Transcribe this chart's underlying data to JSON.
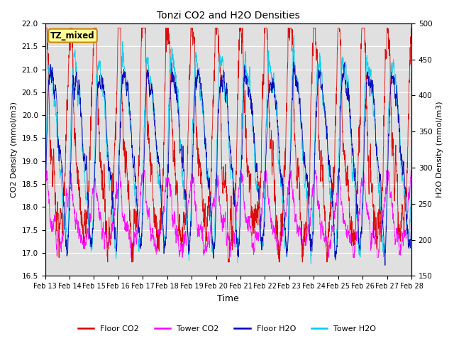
{
  "title": "Tonzi CO2 and H2O Densities",
  "xlabel": "Time",
  "ylabel_left": "CO2 Density (mmol/m3)",
  "ylabel_right": "H2O Density (mmol/m3)",
  "ylim_left": [
    16.5,
    22.0
  ],
  "ylim_right": [
    150,
    500
  ],
  "yticks_left": [
    16.5,
    17.0,
    17.5,
    18.0,
    18.5,
    19.0,
    19.5,
    20.0,
    20.5,
    21.0,
    21.5,
    22.0
  ],
  "yticks_right": [
    150,
    200,
    250,
    300,
    350,
    400,
    450,
    500
  ],
  "date_labels": [
    "Feb 13",
    "Feb 14",
    "Feb 15",
    "Feb 16",
    "Feb 17",
    "Feb 18",
    "Feb 19",
    "Feb 20",
    "Feb 21",
    "Feb 22",
    "Feb 23",
    "Feb 24",
    "Feb 25",
    "Feb 26",
    "Feb 27",
    "Feb 28"
  ],
  "colors": {
    "floor_co2": "#dd0000",
    "tower_co2": "#ff00ff",
    "floor_h2o": "#0000bb",
    "tower_h2o": "#00ccee"
  },
  "annotation_text": "TZ_mixed",
  "annotation_facecolor": "#ffff99",
  "annotation_edgecolor": "#cc8800",
  "background_color": "#e0e0e0",
  "legend_labels": [
    "Floor CO2",
    "Tower CO2",
    "Floor H2O",
    "Tower H2O"
  ],
  "n_points": 2160,
  "duration_days": 15,
  "seed": 7
}
